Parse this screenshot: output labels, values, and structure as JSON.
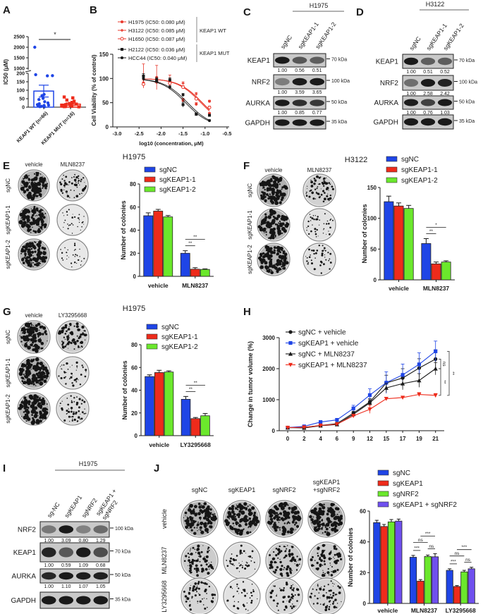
{
  "panel_labels": {
    "A": "A",
    "B": "B",
    "C": "C",
    "D": "D",
    "E": "E",
    "F": "F",
    "G": "G",
    "H": "H",
    "I": "I",
    "J": "J"
  },
  "chart_data": [
    {
      "panel": "A",
      "type": "bar",
      "ylabel": "IC50 (μM)",
      "categories": [
        "KEAP1 WT (n=66)",
        "KEAP1 MUT (n=16)"
      ],
      "yticks_lower": [
        0,
        50,
        100,
        150,
        200
      ],
      "yticks_upper": [
        1000,
        1500,
        2000,
        2500
      ],
      "axis_break": [
        200,
        1000
      ],
      "means": [
        95,
        18
      ],
      "error_ranges": [
        [
          60,
          130
        ],
        [
          10,
          25
        ]
      ],
      "points": [
        [
          2000,
          192,
          186,
          185,
          75,
          68,
          52,
          45,
          32,
          25,
          20,
          15,
          12,
          10,
          8,
          5,
          3,
          2
        ],
        [
          60,
          55,
          42,
          35,
          28,
          22,
          18,
          15,
          12,
          10,
          8,
          6,
          5,
          4,
          3,
          2
        ]
      ],
      "colors": [
        "#1f45e6",
        "#ee2b1b"
      ],
      "significance": "*"
    },
    {
      "panel": "B",
      "type": "line",
      "xlabel": "log10 (concentration, μM)",
      "ylabel": "Cell Viability (% of control)",
      "xticks": [
        "-3.0",
        "-2.5",
        "-2.0",
        "-1.5",
        "-1.0",
        "-0.5"
      ],
      "yticks": [
        0,
        50,
        100,
        150
      ],
      "xlim": [
        -3.0,
        -0.5
      ],
      "ylim": [
        0,
        150
      ],
      "x": [
        -2.4,
        -2.1,
        -1.8,
        -1.5,
        -1.2,
        -0.9
      ],
      "series": [
        {
          "name": "H1975 (IC50: 0.080 μM)",
          "ic50": 0.08,
          "color": "#e8392d",
          "marker": "circle",
          "values": [
            105,
            102,
            92,
            55,
            47,
            53
          ],
          "errors": [
            25,
            25,
            15,
            4,
            3,
            2
          ]
        },
        {
          "name": "H3122 (IC50: 0.085 μM)",
          "ic50": 0.085,
          "color": "#e8392d",
          "marker": "plus",
          "values": [
            92,
            97,
            93,
            90,
            68,
            28
          ],
          "errors": [
            5,
            5,
            4,
            3,
            3,
            2
          ]
        },
        {
          "name": "H1650 (IC50: 0.087 μM)",
          "ic50": 0.087,
          "color": "#e8392d",
          "marker": "open-circle",
          "values": [
            88,
            93,
            90,
            82,
            58,
            40
          ],
          "errors": [
            4,
            4,
            4,
            3,
            3,
            3
          ]
        },
        {
          "name": "H2122 (IC50: 0.036 μM)",
          "ic50": 0.036,
          "color": "#1a1a1a",
          "marker": "square",
          "values": [
            105,
            97,
            97,
            46,
            26,
            24
          ],
          "errors": [
            5,
            5,
            4,
            5,
            2,
            2
          ]
        },
        {
          "name": "HCC44 (IC50: 0.040 μM)",
          "ic50": 0.04,
          "color": "#1a1a1a",
          "marker": "circle",
          "values": [
            100,
            95,
            82,
            66,
            27,
            13
          ],
          "errors": [
            5,
            5,
            3,
            3,
            2,
            2
          ]
        }
      ],
      "groups": [
        {
          "label": "KEAP1 WT",
          "members": [
            0,
            1,
            2
          ]
        },
        {
          "label": "KEAP1 MUT",
          "members": [
            3,
            4
          ]
        }
      ]
    },
    {
      "panel": "E",
      "type": "bar",
      "title": "H1975",
      "ylabel": "Number of colonies",
      "categories": [
        "vehicle",
        "MLN8237"
      ],
      "yticks": [
        0,
        20,
        40,
        60,
        80
      ],
      "ylim": [
        0,
        80
      ],
      "series": [
        {
          "name": "sgNC",
          "color": "#1f45e6",
          "values": [
            52.5,
            20
          ],
          "errors": [
            2.5,
            2.2
          ]
        },
        {
          "name": "sgKEAP1-1",
          "color": "#ee2b1b",
          "values": [
            56.5,
            6.2
          ],
          "errors": [
            1.5,
            1.3
          ]
        },
        {
          "name": "sgKEAP1-2",
          "color": "#6be82c",
          "values": [
            51.5,
            6
          ],
          "errors": [
            1.2,
            0.5
          ]
        }
      ],
      "significance": [
        {
          "category": 1,
          "from": 0,
          "to": 1,
          "label": "**"
        },
        {
          "category": 1,
          "from": 0,
          "to": 2,
          "label": "**"
        }
      ]
    },
    {
      "panel": "F",
      "type": "bar",
      "title": "H3122",
      "ylabel": "Number of colonies",
      "categories": [
        "vehicle",
        "MLN8237"
      ],
      "yticks": [
        0,
        50,
        100,
        150
      ],
      "ylim": [
        0,
        150
      ],
      "series": [
        {
          "name": "sgNC",
          "color": "#1f45e6",
          "values": [
            127,
            59
          ],
          "errors": [
            9,
            8
          ]
        },
        {
          "name": "sgKEAP1-1",
          "color": "#ee2b1b",
          "values": [
            120,
            26
          ],
          "errors": [
            5,
            3
          ]
        },
        {
          "name": "sgKEAP1-2",
          "color": "#6be82c",
          "values": [
            116,
            29
          ],
          "errors": [
            5,
            2
          ]
        }
      ],
      "significance": [
        {
          "category": 1,
          "from": 0,
          "to": 1,
          "label": "**"
        },
        {
          "category": 1,
          "from": 0,
          "to": 2,
          "label": "*"
        }
      ]
    },
    {
      "panel": "G",
      "type": "bar",
      "title": "H1975",
      "ylabel": "Number of colonies",
      "categories": [
        "vehicle",
        "LY3295668"
      ],
      "yticks": [
        0,
        20,
        40,
        60,
        80
      ],
      "ylim": [
        0,
        80
      ],
      "series": [
        {
          "name": "sgNC",
          "color": "#1f45e6",
          "values": [
            52,
            32
          ],
          "errors": [
            1.5,
            2.5
          ]
        },
        {
          "name": "sgKEAP1-1",
          "color": "#ee2b1b",
          "values": [
            55.5,
            15
          ],
          "errors": [
            2,
            1
          ]
        },
        {
          "name": "sgKEAP1-2",
          "color": "#6be82c",
          "values": [
            56,
            17.5
          ],
          "errors": [
            1,
            2
          ]
        }
      ],
      "significance": [
        {
          "category": 1,
          "from": 0,
          "to": 1,
          "label": "**"
        },
        {
          "category": 1,
          "from": 0,
          "to": 2,
          "label": "**"
        }
      ]
    },
    {
      "panel": "H",
      "type": "line",
      "ylabel": "Change in tumor volume (%)",
      "x": [
        0,
        2,
        4,
        6,
        9,
        12,
        15,
        17,
        19,
        21
      ],
      "yticks": [
        0,
        1000,
        2000,
        3000
      ],
      "ylim": [
        0,
        3000
      ],
      "series": [
        {
          "name": "sgNC + vehicle",
          "color": "#1a1a1a",
          "marker": "circle",
          "values": [
            100,
            110,
            170,
            230,
            570,
            930,
            1540,
            1700,
            2020,
            2310
          ],
          "errors": [
            10,
            20,
            30,
            40,
            60,
            100,
            250,
            300,
            300,
            300
          ]
        },
        {
          "name": "sgKEAP1 + vehicle",
          "color": "#1f45e6",
          "marker": "square",
          "values": [
            100,
            140,
            280,
            350,
            720,
            1150,
            1550,
            1800,
            2140,
            2560
          ],
          "errors": [
            10,
            20,
            40,
            50,
            100,
            200,
            350,
            350,
            370,
            330
          ]
        },
        {
          "name": "sgNC + MLN8237",
          "color": "#1a1a1a",
          "marker": "triangle",
          "values": [
            100,
            90,
            160,
            200,
            530,
            900,
            1380,
            1520,
            1620,
            2000
          ],
          "errors": [
            10,
            20,
            30,
            40,
            60,
            100,
            150,
            200,
            220,
            200
          ]
        },
        {
          "name": "sgKEAP1 + MLN8237",
          "color": "#ee2b1b",
          "marker": "triangle-down",
          "values": [
            100,
            110,
            170,
            210,
            480,
            690,
            1030,
            1070,
            1170,
            1140
          ],
          "errors": [
            10,
            15,
            20,
            30,
            50,
            130,
            50,
            40,
            60,
            60
          ]
        }
      ],
      "significance": [
        {
          "from": 0,
          "to": 2,
          "label": "ns"
        },
        {
          "from": 2,
          "to": 3,
          "label": "**"
        },
        {
          "from": 1,
          "to": 3,
          "label": "**"
        }
      ]
    },
    {
      "panel": "J",
      "type": "bar",
      "ylabel": "Number of colonies",
      "categories": [
        "vehicle",
        "MLN8237",
        "LY3295668"
      ],
      "yticks": [
        0,
        20,
        40,
        60
      ],
      "ylim": [
        0,
        60
      ],
      "series": [
        {
          "name": "sgNC",
          "color": "#1f45e6",
          "values": [
            52.5,
            30,
            21.5
          ],
          "errors": [
            1.5,
            1.2,
            1
          ]
        },
        {
          "name": "sgKEAP1",
          "color": "#ee2b1b",
          "values": [
            50,
            14.5,
            11
          ],
          "errors": [
            1.3,
            1,
            0.6
          ]
        },
        {
          "name": "sgNRF2",
          "color": "#6be82c",
          "values": [
            53,
            30.5,
            20.5
          ],
          "errors": [
            1.5,
            0.9,
            1
          ]
        },
        {
          "name": "sgKEAP1 + sgNRF2",
          "color": "#6f50ee",
          "values": [
            53.5,
            30.3,
            22.5
          ],
          "errors": [
            1.3,
            2,
            1
          ]
        }
      ],
      "significance": [
        {
          "category": 1,
          "from": 0,
          "to": 1,
          "label": "***"
        },
        {
          "category": 1,
          "from": 2,
          "to": 3,
          "label": "ns"
        },
        {
          "category": 1,
          "from": 0,
          "to": 2,
          "label": "ns"
        },
        {
          "category": 1,
          "from": 1,
          "to": 3,
          "label": "***"
        },
        {
          "category": 2,
          "from": 0,
          "to": 1,
          "label": "***"
        },
        {
          "category": 2,
          "from": 2,
          "to": 3,
          "label": "ns"
        },
        {
          "category": 2,
          "from": 0,
          "to": 2,
          "label": "ns"
        },
        {
          "category": 2,
          "from": 1,
          "to": 3,
          "label": "***"
        }
      ]
    }
  ],
  "blots": [
    {
      "panel": "C",
      "title": "H1975",
      "lanes": [
        [
          "sgNC"
        ],
        [
          "sgKEAP1-1"
        ],
        [
          "sgKEAP1-2"
        ]
      ],
      "rows": [
        {
          "protein": "KEAP1",
          "marker": "70 kDa",
          "quant": [
            "1.00",
            "0.56",
            "0.51"
          ]
        },
        {
          "protein": "NRF2",
          "marker": "100 kDa",
          "quant": [
            "1.00",
            "3.59",
            "3.65"
          ]
        },
        {
          "protein": "AURKA",
          "marker": "50 kDa",
          "quant": [
            "1.00",
            "0.85",
            "0.77"
          ]
        },
        {
          "protein": "GAPDH",
          "marker": "35 kDa"
        }
      ]
    },
    {
      "panel": "D",
      "title": "H3122",
      "lanes": [
        [
          "sgNC"
        ],
        [
          "sgKEAP1-1"
        ],
        [
          "sgKEAP1-2"
        ]
      ],
      "rows": [
        {
          "protein": "KEAP1",
          "marker": "70 kDa",
          "quant": [
            "1.00",
            "0.51",
            "0.52"
          ]
        },
        {
          "protein": "NRF2",
          "marker": "100 kDa",
          "quant": [
            "1.00",
            "2.58",
            "2.42"
          ]
        },
        {
          "protein": "AURKA",
          "marker": "50 kDa",
          "quant": [
            "1.00",
            "0.76",
            "1.03"
          ]
        },
        {
          "protein": "GAPDH",
          "marker": "35 kDa"
        }
      ]
    },
    {
      "panel": "I",
      "title": "H1975",
      "lanes": [
        [
          "sg-NC"
        ],
        [
          "sgKEAP1"
        ],
        [
          "sgNRF2"
        ],
        [
          "sgKEAP1 +",
          "sgNRF2"
        ]
      ],
      "rows": [
        {
          "protein": "NRF2",
          "marker": "100 kDa",
          "quant": [
            "1.00",
            "3.09",
            "0.80",
            "1.29"
          ]
        },
        {
          "protein": "KEAP1",
          "marker": "70 kDa",
          "quant": [
            "1.00",
            "0.59",
            "1.09",
            "0.68"
          ]
        },
        {
          "protein": "AURKA",
          "marker": "50 kDa",
          "quant": [
            "1.00",
            "1.10",
            "1.07",
            "1.05"
          ]
        },
        {
          "protein": "GAPDH",
          "marker": "35 kDa"
        }
      ]
    }
  ],
  "colony_assays": [
    {
      "panel": "E",
      "columns": [
        [
          "vehicle"
        ],
        [
          "MLN8237"
        ]
      ],
      "rows": [
        "sgNC",
        "sgKEAP1-1",
        "sgKEAP1-2"
      ]
    },
    {
      "panel": "F",
      "columns": [
        [
          "vehicle"
        ],
        [
          "MLN8237"
        ]
      ],
      "rows": [
        "sgNC",
        "sgKEAP1-1",
        "sgKEAP1-2"
      ]
    },
    {
      "panel": "G",
      "columns": [
        [
          "vehicle"
        ],
        [
          "LY3295668"
        ]
      ],
      "rows": [
        "sgNC",
        "sgKEAP1-1",
        "sgKEAP1-2"
      ]
    },
    {
      "panel": "J",
      "columns": [
        [
          "sgNC"
        ],
        [
          "sgKEAP1"
        ],
        [
          "sgNRF2"
        ],
        [
          "sgKEAP1",
          "+sgNRF2"
        ]
      ],
      "rows": [
        "vehicle",
        "MLN8237",
        "LY3295668"
      ]
    }
  ]
}
